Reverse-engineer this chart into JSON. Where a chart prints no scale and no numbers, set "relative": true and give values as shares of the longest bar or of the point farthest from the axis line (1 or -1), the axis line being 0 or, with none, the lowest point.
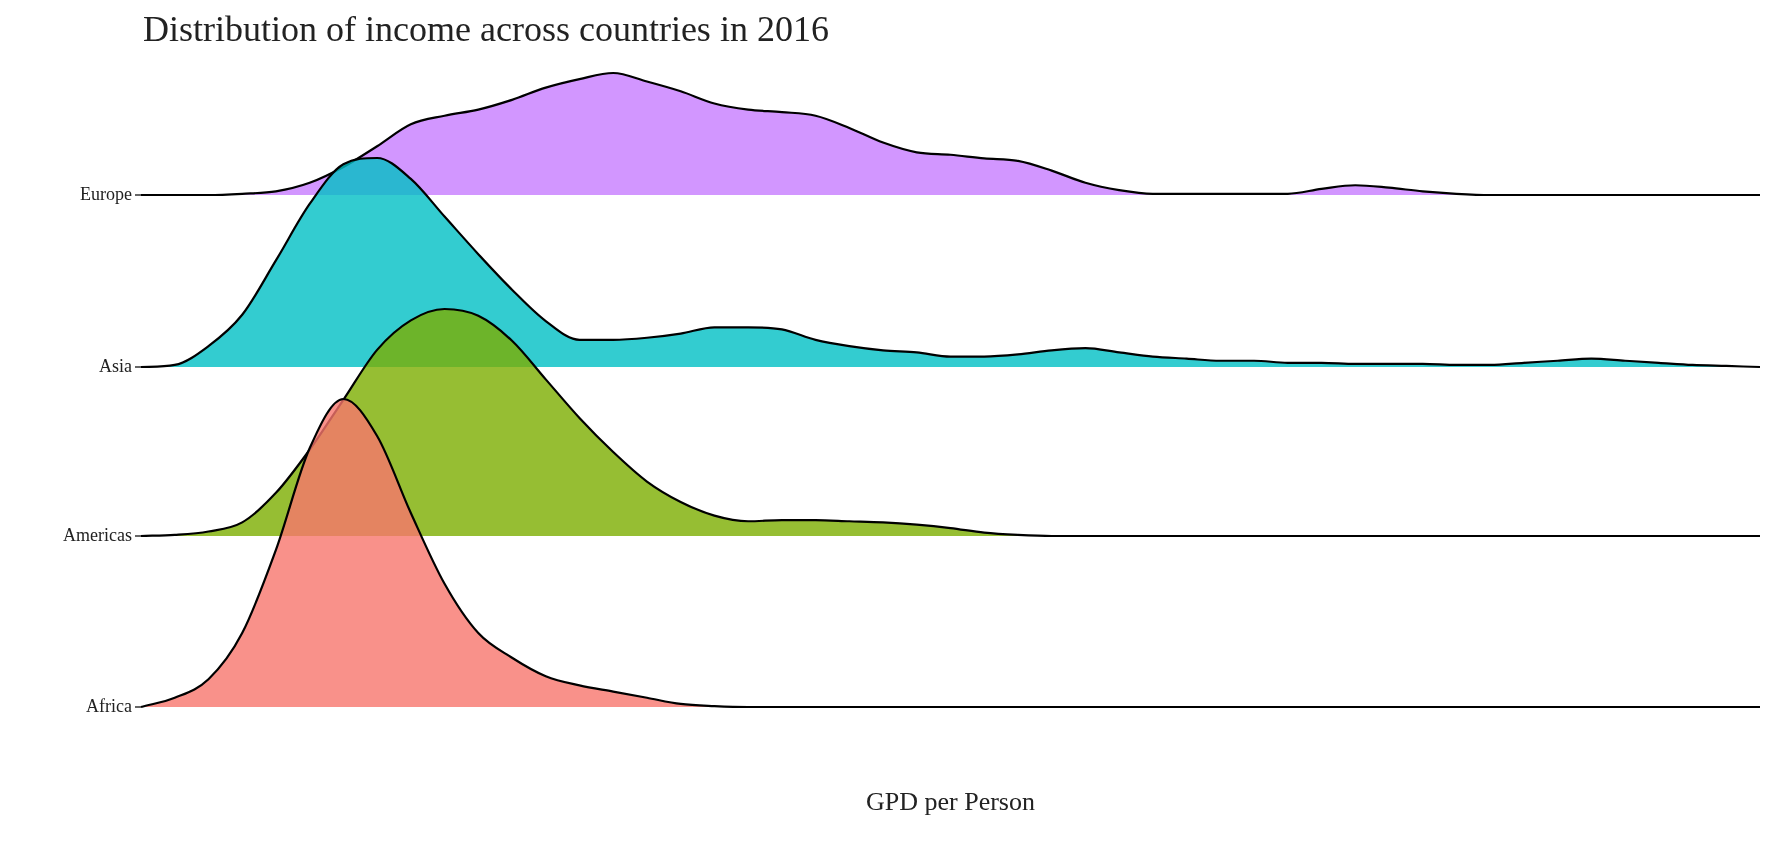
{
  "chart_data": [
    {
      "type": "area",
      "title": "Distribution of income across countries in 2016",
      "ylabel": "Europe",
      "relative": true,
      "categories": [
        null,
        null,
        null,
        null,
        null,
        null,
        null,
        null,
        null,
        null,
        null,
        null,
        null,
        null,
        null,
        null,
        null,
        null,
        null,
        null,
        null,
        null,
        null,
        null,
        null,
        null,
        null,
        null,
        null,
        null,
        null,
        null,
        null,
        null,
        null,
        null,
        null,
        null,
        null,
        null,
        null,
        null,
        null,
        null,
        null,
        null,
        null,
        null,
        null
      ],
      "series": [
        {
          "color": "#c77cff",
          "values": [
            0,
            0,
            0,
            0.01,
            0.03,
            0.1,
            0.23,
            0.4,
            0.58,
            0.65,
            0.7,
            0.78,
            0.88,
            0.95,
            1,
            0.93,
            0.85,
            0.75,
            0.7,
            0.68,
            0.65,
            0.55,
            0.43,
            0.35,
            0.33,
            0.3,
            0.28,
            0.2,
            0.1,
            0.04,
            0.01,
            0.01,
            0.01,
            0.01,
            0.01,
            0.05,
            0.08,
            0.06,
            0.03,
            0.01,
            0,
            0,
            0,
            0,
            0,
            0,
            0,
            0,
            0
          ]
        }
      ]
    },
    {
      "type": "area",
      "ylabel": "Asia",
      "relative": true,
      "categories": [
        null,
        null,
        null,
        null,
        null,
        null,
        null,
        null,
        null,
        null,
        null,
        null,
        null,
        null,
        null,
        null,
        null,
        null,
        null,
        null,
        null,
        null,
        null,
        null,
        null,
        null,
        null,
        null,
        null,
        null,
        null,
        null,
        null,
        null,
        null,
        null,
        null,
        null,
        null,
        null,
        null,
        null,
        null,
        null,
        null,
        null,
        null,
        null,
        null
      ],
      "series": [
        {
          "color": "#00bfc4",
          "values": [
            0,
            0.01,
            0.1,
            0.25,
            0.51,
            0.78,
            0.97,
            1,
            0.9,
            0.72,
            0.54,
            0.37,
            0.22,
            0.13,
            0.13,
            0.14,
            0.16,
            0.19,
            0.19,
            0.18,
            0.13,
            0.1,
            0.08,
            0.07,
            0.05,
            0.05,
            0.06,
            0.08,
            0.09,
            0.07,
            0.05,
            0.04,
            0.03,
            0.03,
            0.02,
            0.02,
            0.015,
            0.015,
            0.015,
            0.01,
            0.01,
            0.02,
            0.03,
            0.04,
            0.03,
            0.02,
            0.01,
            0.005,
            0
          ]
        }
      ]
    },
    {
      "type": "area",
      "ylabel": "Americas",
      "relative": true,
      "categories": [
        null,
        null,
        null,
        null,
        null,
        null,
        null,
        null,
        null,
        null,
        null,
        null,
        null,
        null,
        null,
        null,
        null,
        null,
        null,
        null,
        null,
        null,
        null,
        null,
        null,
        null,
        null,
        null,
        null,
        null,
        null,
        null,
        null,
        null,
        null,
        null,
        null,
        null,
        null,
        null,
        null,
        null,
        null,
        null,
        null,
        null,
        null,
        null,
        null
      ],
      "series": [
        {
          "color": "#7cae00",
          "values": [
            0,
            0.005,
            0.02,
            0.06,
            0.19,
            0.38,
            0.6,
            0.82,
            0.95,
            1,
            0.97,
            0.86,
            0.69,
            0.52,
            0.37,
            0.24,
            0.15,
            0.09,
            0.065,
            0.07,
            0.07,
            0.065,
            0.06,
            0.05,
            0.035,
            0.015,
            0.005,
            0,
            0,
            0,
            0,
            0,
            0,
            0,
            0,
            0,
            0,
            0,
            0,
            0,
            0,
            0,
            0,
            0,
            0,
            0,
            0,
            0,
            0
          ]
        }
      ]
    },
    {
      "type": "area",
      "ylabel": "Africa",
      "xlabel": "GPD per Person",
      "relative": true,
      "categories": [
        null,
        null,
        null,
        null,
        null,
        null,
        null,
        null,
        null,
        null,
        null,
        null,
        null,
        null,
        null,
        null,
        null,
        null,
        null,
        null,
        null,
        null,
        null,
        null,
        null,
        null,
        null,
        null,
        null,
        null,
        null,
        null,
        null,
        null,
        null,
        null,
        null,
        null,
        null,
        null,
        null,
        null,
        null,
        null,
        null,
        null,
        null,
        null,
        null
      ],
      "series": [
        {
          "color": "#f8766d",
          "values": [
            0,
            0.03,
            0.09,
            0.24,
            0.51,
            0.84,
            1,
            0.88,
            0.63,
            0.4,
            0.24,
            0.16,
            0.1,
            0.07,
            0.05,
            0.03,
            0.01,
            0.003,
            0,
            0,
            0,
            0,
            0,
            0,
            0,
            0,
            0,
            0,
            0,
            0,
            0,
            0,
            0,
            0,
            0,
            0,
            0,
            0,
            0,
            0,
            0,
            0,
            0,
            0,
            0,
            0,
            0,
            0,
            0
          ]
        }
      ]
    }
  ]
}
